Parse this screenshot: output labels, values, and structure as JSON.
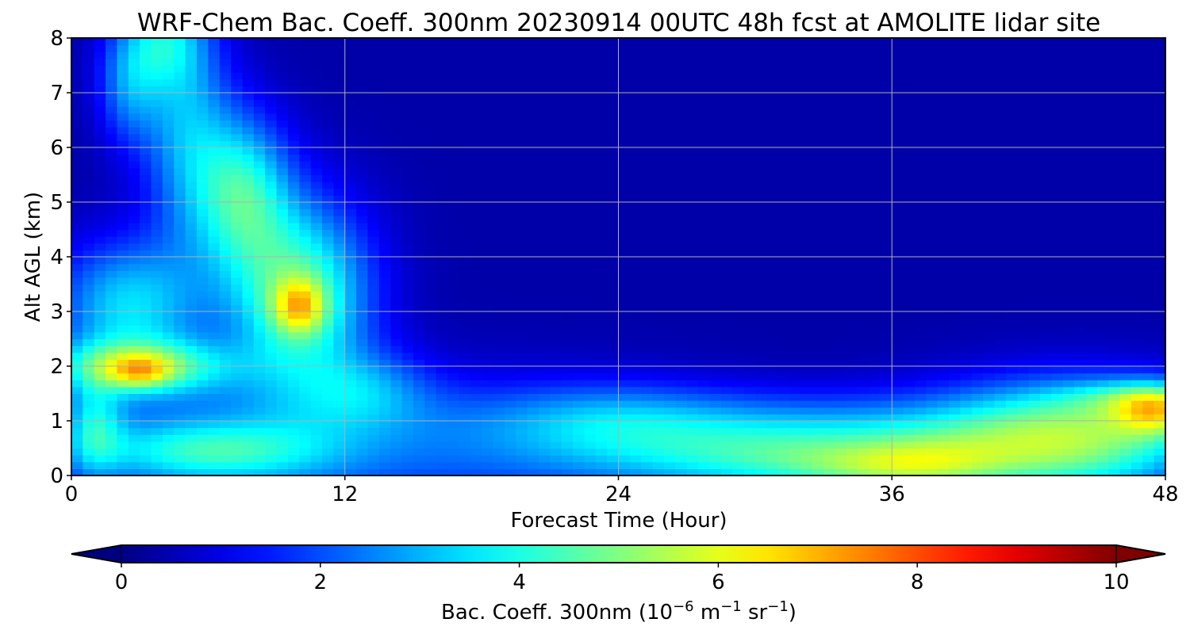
{
  "chart_data": {
    "type": "heatmap",
    "title": "WRF-Chem Bac. Coeff. 300nm  20230914 00UTC 48h fcst at AMOLITE lidar site",
    "xlabel": "Forecast Time (Hour)",
    "ylabel": "Alt AGL (km)",
    "xlim": [
      0,
      48
    ],
    "ylim": [
      0,
      8
    ],
    "xticks": [
      0,
      12,
      24,
      36,
      48
    ],
    "yticks": [
      0,
      1,
      2,
      3,
      4,
      5,
      6,
      7,
      8
    ],
    "grid": true,
    "colormap": "jet",
    "colorbar": {
      "label_prefix": "Bac. Coeff. 300nm  (10",
      "label_exp1": "−6",
      "label_mid": " m",
      "label_exp2": "−1",
      "label_mid2": " sr",
      "label_exp3": "−1",
      "label_suffix": ")",
      "range": [
        0,
        10
      ],
      "ticks": [
        0,
        2,
        4,
        6,
        8,
        10
      ],
      "extend": "both",
      "orientation": "horizontal",
      "under_color": "#00007f",
      "over_color": "#7f0000"
    },
    "features": [
      {
        "name": "background",
        "t": null,
        "z": null,
        "value": 0.4
      },
      {
        "name": "surface layer 0-12h",
        "t": [
          1,
          11
        ],
        "z": [
          0,
          1.3
        ],
        "value": 3.5
      },
      {
        "name": "layer near 2 km",
        "t": [
          0.5,
          6
        ],
        "z": [
          1.5,
          2.5
        ],
        "value": 6.3
      },
      {
        "name": "layer near 3 km",
        "t": [
          1,
          4
        ],
        "z": [
          2.5,
          4.2
        ],
        "value": 4.3
      },
      {
        "name": "lofted plume max",
        "t": 10,
        "z": 3.2,
        "value": 7.5
      },
      {
        "name": "elevated plume 5-6 km",
        "t": [
          6,
          9
        ],
        "z": [
          4.5,
          6.2
        ],
        "value": 4.5
      },
      {
        "name": "upper plume 6-8 km",
        "t": [
          1.5,
          5
        ],
        "z": [
          6,
          8
        ],
        "value": 3.8
      },
      {
        "name": "surface layer 26-40h",
        "t": [
          26,
          40
        ],
        "z": [
          0,
          0.8
        ],
        "value": 4.8
      },
      {
        "name": "boundary layer 40-48h",
        "t": [
          40,
          48
        ],
        "z": [
          0,
          1.3
        ],
        "value": 5.8
      },
      {
        "name": "surface max near 36h",
        "t": 36,
        "z": 0.1,
        "value": 6.2
      },
      {
        "name": "layer max near 1.2 km",
        "t": 47.5,
        "z": 1.2,
        "value": 8.5
      }
    ]
  }
}
